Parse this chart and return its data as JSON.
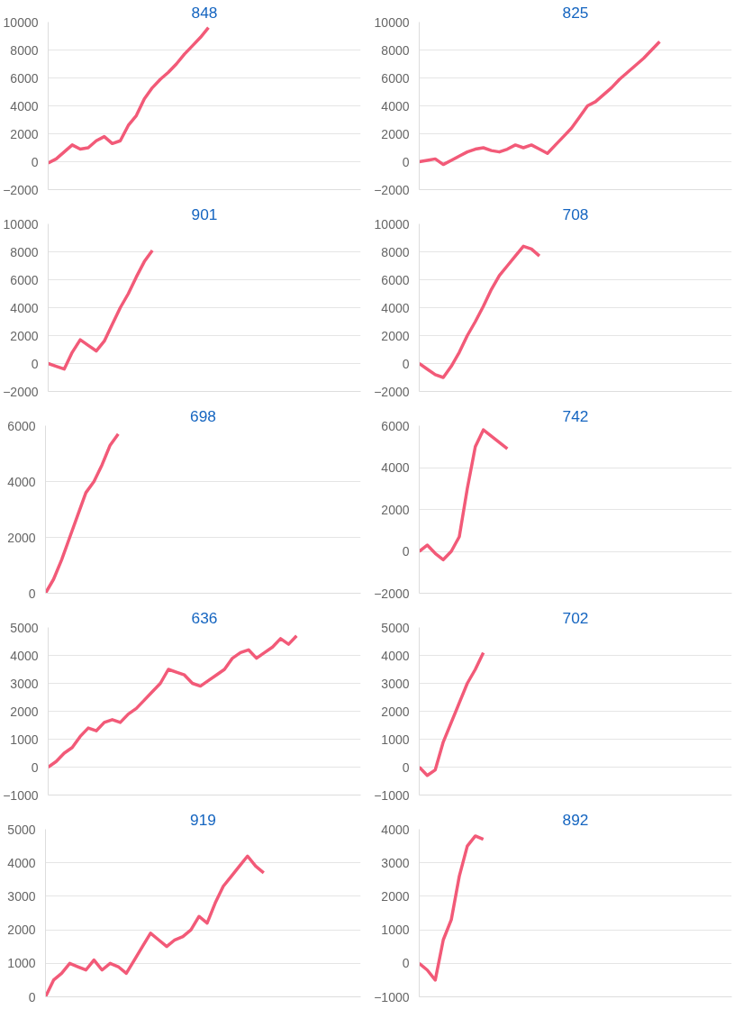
{
  "chart_data": [
    {
      "type": "line",
      "title": "848",
      "categories": [
        null,
        null,
        null,
        null,
        null,
        null,
        null,
        null,
        null,
        null,
        null,
        null,
        null,
        null,
        null,
        null,
        null,
        null,
        null,
        null,
        null,
        null,
        null,
        null,
        null,
        null,
        null,
        null,
        null,
        null,
        null,
        null,
        null,
        null,
        null,
        null,
        null,
        null,
        null,
        null
      ],
      "series": [
        {
          "color": "#f25a78",
          "values": [
            -100,
            200,
            700,
            1200,
            900,
            1000,
            1500,
            1800,
            1300,
            1500,
            2600,
            3300,
            4500,
            5300,
            5900,
            6400,
            7000,
            7700,
            8300,
            8900,
            9600,
            null,
            null,
            null,
            null,
            null,
            null,
            null,
            null,
            null,
            null,
            null,
            null,
            null,
            null,
            null,
            null,
            null,
            null,
            null
          ]
        }
      ],
      "ylim": [
        -2000,
        10000
      ],
      "yticks": [
        -2000,
        0,
        2000,
        4000,
        6000,
        8000,
        10000
      ],
      "grid": "y",
      "tick_labels": "y"
    },
    {
      "type": "line",
      "title": "825",
      "categories": [
        null,
        null,
        null,
        null,
        null,
        null,
        null,
        null,
        null,
        null,
        null,
        null,
        null,
        null,
        null,
        null,
        null,
        null,
        null,
        null,
        null,
        null,
        null,
        null,
        null,
        null,
        null,
        null,
        null,
        null,
        null,
        null,
        null,
        null,
        null,
        null,
        null,
        null,
        null,
        null
      ],
      "series": [
        {
          "color": "#f25a78",
          "values": [
            0,
            100,
            200,
            -200,
            100,
            400,
            700,
            900,
            1000,
            800,
            700,
            900,
            1200,
            1000,
            1200,
            900,
            600,
            1200,
            1800,
            2400,
            3200,
            4000,
            4300,
            4800,
            5300,
            5900,
            6400,
            6900,
            7400,
            8000,
            8600,
            null,
            null,
            null,
            null,
            null,
            null,
            null,
            null,
            null
          ]
        }
      ],
      "ylim": [
        -2000,
        10000
      ],
      "yticks": [
        -2000,
        0,
        2000,
        4000,
        6000,
        8000,
        10000
      ],
      "grid": "y",
      "tick_labels": "y"
    },
    {
      "type": "line",
      "title": "901",
      "categories": [
        null,
        null,
        null,
        null,
        null,
        null,
        null,
        null,
        null,
        null,
        null,
        null,
        null,
        null,
        null,
        null,
        null,
        null,
        null,
        null,
        null,
        null,
        null,
        null,
        null,
        null,
        null,
        null,
        null,
        null,
        null,
        null,
        null,
        null,
        null,
        null,
        null,
        null,
        null,
        null
      ],
      "series": [
        {
          "color": "#f25a78",
          "values": [
            0,
            -200,
            -400,
            800,
            1700,
            1300,
            900,
            1600,
            2800,
            4000,
            5000,
            6200,
            7300,
            8100,
            null,
            null,
            null,
            null,
            null,
            null,
            null,
            null,
            null,
            null,
            null,
            null,
            null,
            null,
            null,
            null,
            null,
            null,
            null,
            null,
            null,
            null,
            null,
            null,
            null,
            null
          ]
        }
      ],
      "ylim": [
        -2000,
        10000
      ],
      "yticks": [
        -2000,
        0,
        2000,
        4000,
        6000,
        8000,
        10000
      ],
      "grid": "y",
      "tick_labels": "y"
    },
    {
      "type": "line",
      "title": "708",
      "categories": [
        null,
        null,
        null,
        null,
        null,
        null,
        null,
        null,
        null,
        null,
        null,
        null,
        null,
        null,
        null,
        null,
        null,
        null,
        null,
        null,
        null,
        null,
        null,
        null,
        null,
        null,
        null,
        null,
        null,
        null,
        null,
        null,
        null,
        null,
        null,
        null,
        null,
        null,
        null,
        null
      ],
      "series": [
        {
          "color": "#f25a78",
          "values": [
            0,
            -400,
            -800,
            -1000,
            -200,
            800,
            2000,
            3000,
            4100,
            5300,
            6300,
            7000,
            7700,
            8400,
            8200,
            7700,
            null,
            null,
            null,
            null,
            null,
            null,
            null,
            null,
            null,
            null,
            null,
            null,
            null,
            null,
            null,
            null,
            null,
            null,
            null,
            null,
            null,
            null,
            null,
            null
          ]
        }
      ],
      "ylim": [
        -2000,
        10000
      ],
      "yticks": [
        -2000,
        0,
        2000,
        4000,
        6000,
        8000,
        10000
      ],
      "grid": "y",
      "tick_labels": "y"
    },
    {
      "type": "line",
      "title": "698",
      "categories": [
        null,
        null,
        null,
        null,
        null,
        null,
        null,
        null,
        null,
        null,
        null,
        null,
        null,
        null,
        null,
        null,
        null,
        null,
        null,
        null,
        null,
        null,
        null,
        null,
        null,
        null,
        null,
        null,
        null,
        null,
        null,
        null,
        null,
        null,
        null,
        null,
        null,
        null,
        null,
        null
      ],
      "series": [
        {
          "color": "#f25a78",
          "values": [
            0,
            500,
            1200,
            2000,
            2800,
            3600,
            4000,
            4600,
            5300,
            5700,
            null,
            null,
            null,
            null,
            null,
            null,
            null,
            null,
            null,
            null,
            null,
            null,
            null,
            null,
            null,
            null,
            null,
            null,
            null,
            null,
            null,
            null,
            null,
            null,
            null,
            null,
            null,
            null,
            null,
            null
          ]
        }
      ],
      "ylim": [
        0,
        6000
      ],
      "yticks": [
        0,
        2000,
        4000,
        6000
      ],
      "grid": "y",
      "tick_labels": "y"
    },
    {
      "type": "line",
      "title": "742",
      "categories": [
        null,
        null,
        null,
        null,
        null,
        null,
        null,
        null,
        null,
        null,
        null,
        null,
        null,
        null,
        null,
        null,
        null,
        null,
        null,
        null,
        null,
        null,
        null,
        null,
        null,
        null,
        null,
        null,
        null,
        null,
        null,
        null,
        null,
        null,
        null,
        null,
        null,
        null,
        null,
        null
      ],
      "series": [
        {
          "color": "#f25a78",
          "values": [
            0,
            300,
            -100,
            -400,
            0,
            700,
            3000,
            5000,
            5800,
            5500,
            5200,
            4900,
            null,
            null,
            null,
            null,
            null,
            null,
            null,
            null,
            null,
            null,
            null,
            null,
            null,
            null,
            null,
            null,
            null,
            null,
            null,
            null,
            null,
            null,
            null,
            null,
            null,
            null,
            null,
            null
          ]
        }
      ],
      "ylim": [
        -2000,
        6000
      ],
      "yticks": [
        -2000,
        0,
        2000,
        4000,
        6000
      ],
      "grid": "y",
      "tick_labels": "y"
    },
    {
      "type": "line",
      "title": "636",
      "categories": [
        null,
        null,
        null,
        null,
        null,
        null,
        null,
        null,
        null,
        null,
        null,
        null,
        null,
        null,
        null,
        null,
        null,
        null,
        null,
        null,
        null,
        null,
        null,
        null,
        null,
        null,
        null,
        null,
        null,
        null,
        null,
        null,
        null,
        null,
        null,
        null,
        null,
        null,
        null,
        null
      ],
      "series": [
        {
          "color": "#f25a78",
          "values": [
            0,
            200,
            500,
            700,
            1100,
            1400,
            1300,
            1600,
            1700,
            1600,
            1900,
            2100,
            2400,
            2700,
            3000,
            3500,
            3400,
            3300,
            3000,
            2900,
            3100,
            3300,
            3500,
            3900,
            4100,
            4200,
            3900,
            4100,
            4300,
            4600,
            4400,
            4700,
            null,
            null,
            null,
            null,
            null,
            null,
            null,
            null
          ]
        }
      ],
      "ylim": [
        -1000,
        5000
      ],
      "yticks": [
        -1000,
        0,
        1000,
        2000,
        3000,
        4000,
        5000
      ],
      "grid": "y",
      "tick_labels": "y"
    },
    {
      "type": "line",
      "title": "702",
      "categories": [
        null,
        null,
        null,
        null,
        null,
        null,
        null,
        null,
        null,
        null,
        null,
        null,
        null,
        null,
        null,
        null,
        null,
        null,
        null,
        null,
        null,
        null,
        null,
        null,
        null,
        null,
        null,
        null,
        null,
        null,
        null,
        null,
        null,
        null,
        null,
        null,
        null,
        null,
        null,
        null
      ],
      "series": [
        {
          "color": "#f25a78",
          "values": [
            0,
            -300,
            -100,
            900,
            1600,
            2300,
            3000,
            3500,
            4100,
            null,
            null,
            null,
            null,
            null,
            null,
            null,
            null,
            null,
            null,
            null,
            null,
            null,
            null,
            null,
            null,
            null,
            null,
            null,
            null,
            null,
            null,
            null,
            null,
            null,
            null,
            null,
            null,
            null,
            null,
            null
          ]
        }
      ],
      "ylim": [
        -1000,
        5000
      ],
      "yticks": [
        -1000,
        0,
        1000,
        2000,
        3000,
        4000,
        5000
      ],
      "grid": "y",
      "tick_labels": "y"
    },
    {
      "type": "line",
      "title": "919",
      "categories": [
        null,
        null,
        null,
        null,
        null,
        null,
        null,
        null,
        null,
        null,
        null,
        null,
        null,
        null,
        null,
        null,
        null,
        null,
        null,
        null,
        null,
        null,
        null,
        null,
        null,
        null,
        null,
        null,
        null,
        null,
        null,
        null,
        null,
        null,
        null,
        null,
        null,
        null,
        null,
        null
      ],
      "series": [
        {
          "color": "#f25a78",
          "values": [
            0,
            500,
            700,
            1000,
            900,
            800,
            1100,
            800,
            1000,
            900,
            700,
            1100,
            1500,
            1900,
            1700,
            1500,
            1700,
            1800,
            2000,
            2400,
            2200,
            2800,
            3300,
            3600,
            3900,
            4200,
            3900,
            3700,
            null,
            null,
            null,
            null,
            null,
            null,
            null,
            null,
            null,
            null,
            null,
            null
          ]
        }
      ],
      "ylim": [
        0,
        5000
      ],
      "yticks": [
        0,
        1000,
        2000,
        3000,
        4000,
        5000
      ],
      "grid": "y",
      "tick_labels": "y"
    },
    {
      "type": "line",
      "title": "892",
      "categories": [
        null,
        null,
        null,
        null,
        null,
        null,
        null,
        null,
        null,
        null,
        null,
        null,
        null,
        null,
        null,
        null,
        null,
        null,
        null,
        null,
        null,
        null,
        null,
        null,
        null,
        null,
        null,
        null,
        null,
        null,
        null,
        null,
        null,
        null,
        null,
        null,
        null,
        null,
        null,
        null
      ],
      "series": [
        {
          "color": "#f25a78",
          "values": [
            0,
            -200,
            -500,
            700,
            1300,
            2600,
            3500,
            3800,
            3700,
            null,
            null,
            null,
            null,
            null,
            null,
            null,
            null,
            null,
            null,
            null,
            null,
            null,
            null,
            null,
            null,
            null,
            null,
            null,
            null,
            null,
            null,
            null,
            null,
            null,
            null,
            null,
            null,
            null,
            null,
            null
          ]
        }
      ],
      "ylim": [
        -1000,
        4000
      ],
      "yticks": [
        -1000,
        0,
        1000,
        2000,
        3000,
        4000
      ],
      "grid": "y",
      "tick_labels": "y"
    }
  ]
}
